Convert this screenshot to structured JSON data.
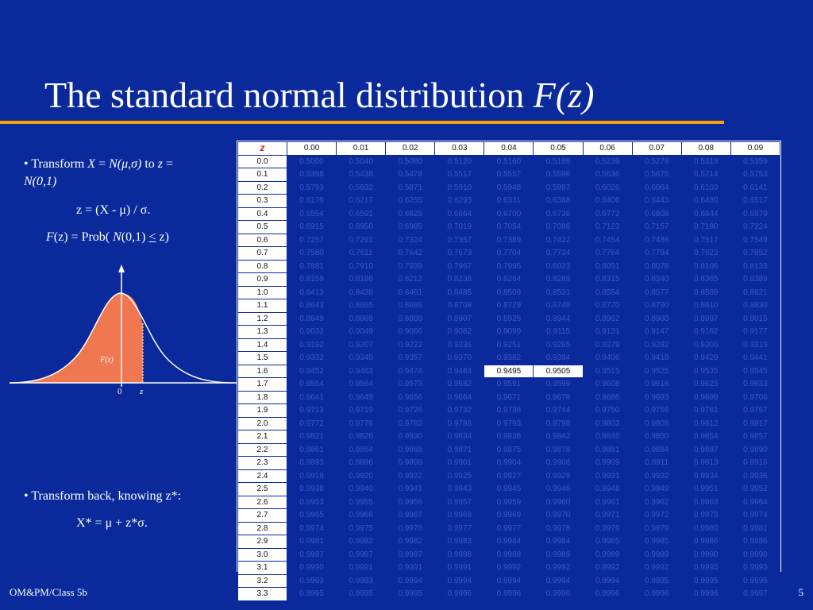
{
  "slide": {
    "title_main": "The standard normal distribution ",
    "title_italic": "F(z)",
    "footer_left": "OM&PM/Class 5b",
    "page_number": "5",
    "accent_color": "#f5a00a",
    "background_color": "#0a2a9c"
  },
  "left": {
    "b1_prefix": "• Transform ",
    "b1_x": "X",
    "b1_eq": " = ",
    "b1_n": "N(μ,σ)",
    "b1_to": " to ",
    "b1_z": "z",
    "b1_eq2": " =",
    "b1_n01": "N(0,1)",
    "eq1": "z = (X - μ) / σ.",
    "eq2_f": "F",
    "eq2_rest1": "(z) = Prob( ",
    "eq2_n": "N",
    "eq2_rest2": "(0,1) ",
    "eq2_le": "<",
    "eq2_rest3": " z)",
    "curve_label": "F(z)",
    "axis_zero": "0",
    "axis_z": "z",
    "b2": "• Transform back, knowing z*:",
    "eq3": "X* = μ + z*σ."
  },
  "table": {
    "corner": "z",
    "columns": [
      "0.00",
      "0.01",
      "0.02",
      "0.03",
      "0.04",
      "0.05",
      "0.06",
      "0.07",
      "0.08",
      "0.09"
    ],
    "highlight": [
      {
        "row": "1.6",
        "col": 4
      },
      {
        "row": "1.6",
        "col": 5
      }
    ],
    "rows": [
      {
        "z": "0.0",
        "v": [
          "0.5000",
          "0.5040",
          "0.5080",
          "0.5120",
          "0.5160",
          "0.5199",
          "0.5239",
          "0.5279",
          "0.5319",
          "0.5359"
        ]
      },
      {
        "z": "0.1",
        "v": [
          "0.5398",
          "0.5438",
          "0.5478",
          "0.5517",
          "0.5557",
          "0.5596",
          "0.5636",
          "0.5675",
          "0.5714",
          "0.5753"
        ]
      },
      {
        "z": "0.2",
        "v": [
          "0.5793",
          "0.5832",
          "0.5871",
          "0.5910",
          "0.5948",
          "0.5987",
          "0.6026",
          "0.6064",
          "0.6103",
          "0.6141"
        ]
      },
      {
        "z": "0.3",
        "v": [
          "0.6179",
          "0.6217",
          "0.6255",
          "0.6293",
          "0.6331",
          "0.6368",
          "0.6406",
          "0.6443",
          "0.6480",
          "0.6517"
        ]
      },
      {
        "z": "0.4",
        "v": [
          "0.6554",
          "0.6591",
          "0.6628",
          "0.6664",
          "0.6700",
          "0.6736",
          "0.6772",
          "0.6808",
          "0.6844",
          "0.6879"
        ]
      },
      {
        "z": "0.5",
        "v": [
          "0.6915",
          "0.6950",
          "0.6985",
          "0.7019",
          "0.7054",
          "0.7088",
          "0.7123",
          "0.7157",
          "0.7190",
          "0.7224"
        ]
      },
      {
        "z": "0.6",
        "v": [
          "0.7257",
          "0.7291",
          "0.7324",
          "0.7357",
          "0.7389",
          "0.7422",
          "0.7454",
          "0.7486",
          "0.7517",
          "0.7549"
        ]
      },
      {
        "z": "0.7",
        "v": [
          "0.7580",
          "0.7611",
          "0.7642",
          "0.7673",
          "0.7704",
          "0.7734",
          "0.7764",
          "0.7794",
          "0.7823",
          "0.7852"
        ]
      },
      {
        "z": "0.8",
        "v": [
          "0.7881",
          "0.7910",
          "0.7939",
          "0.7967",
          "0.7995",
          "0.8023",
          "0.8051",
          "0.8078",
          "0.8106",
          "0.8133"
        ]
      },
      {
        "z": "0.9",
        "v": [
          "0.8159",
          "0.8186",
          "0.8212",
          "0.8238",
          "0.8264",
          "0.8289",
          "0.8315",
          "0.8340",
          "0.8365",
          "0.8389"
        ]
      },
      {
        "z": "1.0",
        "v": [
          "0.8413",
          "0.8438",
          "0.8461",
          "0.8485",
          "0.8508",
          "0.8531",
          "0.8554",
          "0.8577",
          "0.8599",
          "0.8621"
        ]
      },
      {
        "z": "1.1",
        "v": [
          "0.8643",
          "0.8665",
          "0.8686",
          "0.8708",
          "0.8729",
          "0.8749",
          "0.8770",
          "0.8790",
          "0.8810",
          "0.8830"
        ]
      },
      {
        "z": "1.2",
        "v": [
          "0.8849",
          "0.8869",
          "0.8888",
          "0.8907",
          "0.8925",
          "0.8944",
          "0.8962",
          "0.8980",
          "0.8997",
          "0.9015"
        ]
      },
      {
        "z": "1.3",
        "v": [
          "0.9032",
          "0.9049",
          "0.9066",
          "0.9082",
          "0.9099",
          "0.9115",
          "0.9131",
          "0.9147",
          "0.9162",
          "0.9177"
        ]
      },
      {
        "z": "1.4",
        "v": [
          "0.9192",
          "0.9207",
          "0.9222",
          "0.9236",
          "0.9251",
          "0.9265",
          "0.9279",
          "0.9292",
          "0.9306",
          "0.9319"
        ]
      },
      {
        "z": "1.5",
        "v": [
          "0.9332",
          "0.9345",
          "0.9357",
          "0.9370",
          "0.9382",
          "0.9394",
          "0.9406",
          "0.9418",
          "0.9429",
          "0.9441"
        ]
      },
      {
        "z": "1.6",
        "v": [
          "0.9452",
          "0.9463",
          "0.9474",
          "0.9484",
          "0.9495",
          "0.9505",
          "0.9515",
          "0.9525",
          "0.9535",
          "0.9545"
        ]
      },
      {
        "z": "1.7",
        "v": [
          "0.9554",
          "0.9564",
          "0.9573",
          "0.9582",
          "0.9591",
          "0.9599",
          "0.9608",
          "0.9616",
          "0.9625",
          "0.9633"
        ]
      },
      {
        "z": "1.8",
        "v": [
          "0.9641",
          "0.9649",
          "0.9656",
          "0.9664",
          "0.9671",
          "0.9678",
          "0.9686",
          "0.9693",
          "0.9699",
          "0.9706"
        ]
      },
      {
        "z": "1.9",
        "v": [
          "0.9713",
          "0.9719",
          "0.9726",
          "0.9732",
          "0.9738",
          "0.9744",
          "0.9750",
          "0.9756",
          "0.9761",
          "0.9767"
        ]
      },
      {
        "z": "2.0",
        "v": [
          "0.9772",
          "0.9778",
          "0.9783",
          "0.9788",
          "0.9793",
          "0.9798",
          "0.9803",
          "0.9808",
          "0.9812",
          "0.9817"
        ]
      },
      {
        "z": "2.1",
        "v": [
          "0.9821",
          "0.9826",
          "0.9830",
          "0.9834",
          "0.9838",
          "0.9842",
          "0.9846",
          "0.9850",
          "0.9854",
          "0.9857"
        ]
      },
      {
        "z": "2.2",
        "v": [
          "0.9861",
          "0.9864",
          "0.9868",
          "0.9871",
          "0.9875",
          "0.9878",
          "0.9881",
          "0.9884",
          "0.9887",
          "0.9890"
        ]
      },
      {
        "z": "2.3",
        "v": [
          "0.9893",
          "0.9896",
          "0.9898",
          "0.9901",
          "0.9904",
          "0.9906",
          "0.9909",
          "0.9911",
          "0.9913",
          "0.9916"
        ]
      },
      {
        "z": "2.4",
        "v": [
          "0.9918",
          "0.9920",
          "0.9922",
          "0.9925",
          "0.9927",
          "0.9929",
          "0.9931",
          "0.9932",
          "0.9934",
          "0.9936"
        ]
      },
      {
        "z": "2.5",
        "v": [
          "0.9938",
          "0.9940",
          "0.9941",
          "0.9943",
          "0.9945",
          "0.9946",
          "0.9948",
          "0.9949",
          "0.9951",
          "0.9952"
        ]
      },
      {
        "z": "2.6",
        "v": [
          "0.9953",
          "0.9955",
          "0.9956",
          "0.9957",
          "0.9959",
          "0.9960",
          "0.9961",
          "0.9962",
          "0.9963",
          "0.9964"
        ]
      },
      {
        "z": "2.7",
        "v": [
          "0.9965",
          "0.9966",
          "0.9967",
          "0.9968",
          "0.9969",
          "0.9970",
          "0.9971",
          "0.9972",
          "0.9973",
          "0.9974"
        ]
      },
      {
        "z": "2.8",
        "v": [
          "0.9974",
          "0.9975",
          "0.9976",
          "0.9977",
          "0.9977",
          "0.9978",
          "0.9979",
          "0.9979",
          "0.9980",
          "0.9981"
        ]
      },
      {
        "z": "2.9",
        "v": [
          "0.9981",
          "0.9982",
          "0.9982",
          "0.9983",
          "0.9984",
          "0.9984",
          "0.9985",
          "0.9985",
          "0.9986",
          "0.9986"
        ]
      },
      {
        "z": "3.0",
        "v": [
          "0.9987",
          "0.9987",
          "0.9987",
          "0.9988",
          "0.9988",
          "0.9989",
          "0.9989",
          "0.9989",
          "0.9990",
          "0.9990"
        ]
      },
      {
        "z": "3.1",
        "v": [
          "0.9990",
          "0.9991",
          "0.9991",
          "0.9991",
          "0.9992",
          "0.9992",
          "0.9992",
          "0.9992",
          "0.9993",
          "0.9993"
        ]
      },
      {
        "z": "3.2",
        "v": [
          "0.9993",
          "0.9993",
          "0.9994",
          "0.9994",
          "0.9994",
          "0.9994",
          "0.9994",
          "0.9995",
          "0.9995",
          "0.9995"
        ]
      },
      {
        "z": "3.3",
        "v": [
          "0.9995",
          "0.9995",
          "0.9995",
          "0.9996",
          "0.9996",
          "0.9996",
          "0.9996",
          "0.9996",
          "0.9996",
          "0.9997"
        ]
      }
    ]
  }
}
